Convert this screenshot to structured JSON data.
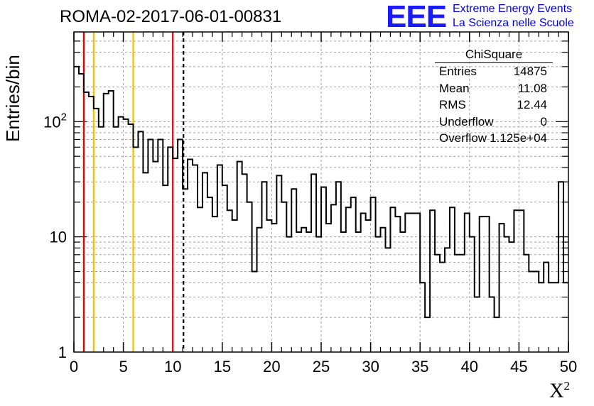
{
  "title": "ROMA-02-2017-06-01-00831",
  "logo": {
    "mark": "EEE",
    "line1": "Extreme Energy Events",
    "line2": "La Scienza nelle Scuole"
  },
  "stats": {
    "title": "ChiSquare",
    "rows": [
      {
        "label": "Entries",
        "value": "14875"
      },
      {
        "label": "Mean",
        "value": "11.08"
      },
      {
        "label": "RMS",
        "value": "12.44"
      },
      {
        "label": "Underflow",
        "value": "0"
      },
      {
        "label": "Overflow",
        "value": "1.125e+04"
      }
    ]
  },
  "axes": {
    "ylabel": "Entries/bin",
    "xlabel_base": "X",
    "xlabel_sup": "2"
  },
  "colors": {
    "red": "#e60000",
    "yellow": "#f0c000",
    "blue_logo": "#1a1aff"
  },
  "chart_data": {
    "type": "histogram",
    "title": "ROMA-02-2017-06-01-00831",
    "xlabel": "X²",
    "ylabel": "Entries/bin",
    "xlim": [
      0,
      50
    ],
    "ylim": [
      1,
      600
    ],
    "ylog": true,
    "grid": true,
    "bin_width": 0.5,
    "x_ticks": [
      0,
      5,
      10,
      15,
      20,
      25,
      30,
      35,
      40,
      45,
      50
    ],
    "y_ticks": [
      1,
      10,
      100
    ],
    "y_tick_labels": [
      "1",
      "10",
      "10^2"
    ],
    "values": [
      300,
      260,
      180,
      165,
      130,
      90,
      175,
      185,
      90,
      110,
      105,
      95,
      60,
      82,
      36,
      70,
      45,
      70,
      28,
      60,
      48,
      70,
      26,
      47,
      42,
      18,
      36,
      22,
      15,
      42,
      28,
      17,
      14,
      45,
      35,
      20,
      5,
      12,
      30,
      14,
      13,
      34,
      20,
      10,
      26,
      11,
      12,
      11,
      35,
      10,
      27,
      13,
      19,
      30,
      11,
      18,
      22,
      11,
      16,
      14,
      22,
      10,
      12,
      8,
      18,
      15,
      11,
      16,
      16,
      16,
      4,
      2,
      17,
      7,
      6,
      8,
      18,
      7,
      7,
      16,
      10,
      3,
      15,
      15,
      3,
      2,
      13,
      10,
      9,
      17,
      17,
      7,
      5,
      5,
      4,
      6,
      4,
      4,
      30,
      4
    ]
  },
  "markers": [
    {
      "x": 1,
      "color": "red",
      "style": "solid"
    },
    {
      "x": 2,
      "color": "yellow",
      "style": "solid"
    },
    {
      "x": 6,
      "color": "yellow",
      "style": "solid"
    },
    {
      "x": 10,
      "color": "red",
      "style": "solid"
    },
    {
      "x": 11.08,
      "color": "black",
      "style": "dashed"
    }
  ]
}
